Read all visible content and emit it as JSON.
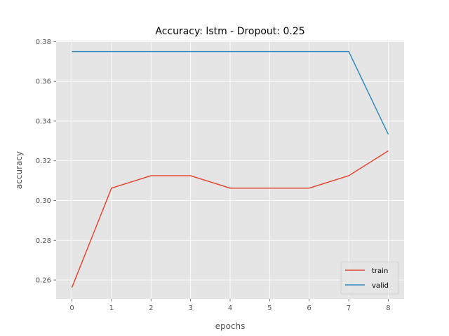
{
  "chart_data": {
    "type": "line",
    "title": "Accuracy: lstm - Dropout: 0.25",
    "xlabel": "epochs",
    "ylabel": "accuracy",
    "x": [
      0,
      1,
      2,
      3,
      4,
      5,
      6,
      7,
      8
    ],
    "xticks": [
      "0",
      "1",
      "2",
      "3",
      "4",
      "5",
      "6",
      "7",
      "8"
    ],
    "yticks": [
      "0.26",
      "0.28",
      "0.30",
      "0.32",
      "0.34",
      "0.36",
      "0.38"
    ],
    "ylim": [
      0.2505,
      0.3805
    ],
    "xlim": [
      -0.4,
      8.4
    ],
    "grid": true,
    "legend_position": "bottom-right",
    "background_color": "#e5e5e5",
    "grid_color": "#ffffff",
    "series": [
      {
        "name": "train",
        "color": "#e24a33",
        "values": [
          0.25625,
          0.30625,
          0.3125,
          0.3125,
          0.30625,
          0.30625,
          0.30625,
          0.3125,
          0.325
        ]
      },
      {
        "name": "valid",
        "color": "#348abd",
        "values": [
          0.375,
          0.375,
          0.375,
          0.375,
          0.375,
          0.375,
          0.375,
          0.375,
          0.33333
        ]
      }
    ]
  }
}
